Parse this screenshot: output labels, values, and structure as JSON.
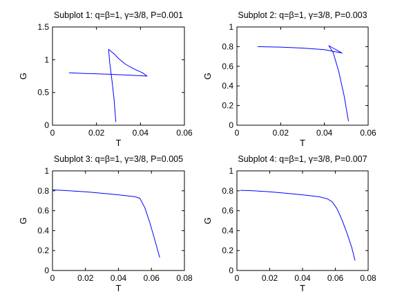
{
  "figure": {
    "line_color": "#0000ff",
    "axis_color": "#000000"
  },
  "chart_data": [
    {
      "type": "line",
      "title": "Subplot 1: q=β=1, γ=3/8, P=0.001",
      "xlabel": "T",
      "ylabel": "G",
      "xlim": [
        0,
        0.06
      ],
      "ylim": [
        0,
        1.5
      ],
      "xticks": [
        "0",
        "0.02",
        "0.04",
        "0.06"
      ],
      "xtick_values": [
        0,
        0.02,
        0.04,
        0.06
      ],
      "yticks": [
        "0",
        "0.5",
        "1",
        "1.5"
      ],
      "ytick_values": [
        0,
        0.5,
        1,
        1.5
      ],
      "series": [
        {
          "x": [
            0.0075,
            0.015,
            0.025,
            0.035,
            0.043,
            0.041,
            0.037,
            0.033,
            0.03,
            0.028,
            0.0265,
            0.0255,
            0.026,
            0.027,
            0.028,
            0.0288
          ],
          "y": [
            0.8,
            0.79,
            0.78,
            0.765,
            0.75,
            0.8,
            0.86,
            0.935,
            1.02,
            1.09,
            1.13,
            1.16,
            0.96,
            0.7,
            0.4,
            0.05
          ]
        }
      ]
    },
    {
      "type": "line",
      "title": "Subplot 2: q=β=1, γ=3/8, P=0.003",
      "xlabel": "T",
      "ylabel": "G",
      "xlim": [
        0,
        0.06
      ],
      "ylim": [
        0,
        1
      ],
      "xticks": [
        "0",
        "0.02",
        "0.04",
        "0.06"
      ],
      "xtick_values": [
        0,
        0.02,
        0.04,
        0.06
      ],
      "yticks": [
        "0",
        "0.2",
        "0.4",
        "0.6",
        "0.8",
        "1"
      ],
      "ytick_values": [
        0,
        0.2,
        0.4,
        0.6,
        0.8,
        1
      ],
      "series": [
        {
          "x": [
            0.0095,
            0.02,
            0.03,
            0.04,
            0.048,
            0.046,
            0.044,
            0.042,
            0.044,
            0.0465,
            0.049,
            0.051
          ],
          "y": [
            0.8,
            0.795,
            0.785,
            0.77,
            0.735,
            0.76,
            0.785,
            0.81,
            0.74,
            0.55,
            0.3,
            0.04
          ]
        }
      ]
    },
    {
      "type": "line",
      "title": "Subplot 3: q=β=1, γ=3/8, P=0.005",
      "xlabel": "T",
      "ylabel": "G",
      "xlim": [
        0,
        0.08
      ],
      "ylim": [
        0,
        1
      ],
      "xticks": [
        "0",
        "0.02",
        "0.04",
        "0.06",
        "0.08"
      ],
      "xtick_values": [
        0,
        0.02,
        0.04,
        0.06,
        0.08
      ],
      "yticks": [
        "0",
        "0.2",
        "0.4",
        "0.6",
        "0.8",
        "1"
      ],
      "ytick_values": [
        0,
        0.2,
        0.4,
        0.6,
        0.8,
        1
      ],
      "series": [
        {
          "x": [
            0,
            0.01,
            0.02,
            0.03,
            0.04,
            0.05,
            0.053,
            0.056,
            0.059,
            0.062,
            0.065
          ],
          "y": [
            0.81,
            0.8,
            0.79,
            0.775,
            0.76,
            0.74,
            0.725,
            0.63,
            0.48,
            0.31,
            0.13
          ]
        }
      ]
    },
    {
      "type": "line",
      "title": "Subplot 4: q=β=1, γ=3/8, P=0.007",
      "xlabel": "T",
      "ylabel": "G",
      "xlim": [
        0,
        0.08
      ],
      "ylim": [
        0,
        1
      ],
      "xticks": [
        "0",
        "0.02",
        "0.04",
        "0.06",
        "0.08"
      ],
      "xtick_values": [
        0,
        0.02,
        0.04,
        0.06,
        0.08
      ],
      "yticks": [
        "0",
        "0.2",
        "0.4",
        "0.6",
        "0.8",
        "1"
      ],
      "ytick_values": [
        0,
        0.2,
        0.4,
        0.6,
        0.8,
        1
      ],
      "series": [
        {
          "x": [
            0.002,
            0.01,
            0.02,
            0.03,
            0.04,
            0.05,
            0.055,
            0.058,
            0.061,
            0.064,
            0.067,
            0.07,
            0.072
          ],
          "y": [
            0.805,
            0.8,
            0.79,
            0.775,
            0.76,
            0.74,
            0.72,
            0.69,
            0.62,
            0.51,
            0.38,
            0.23,
            0.1
          ]
        }
      ]
    }
  ]
}
